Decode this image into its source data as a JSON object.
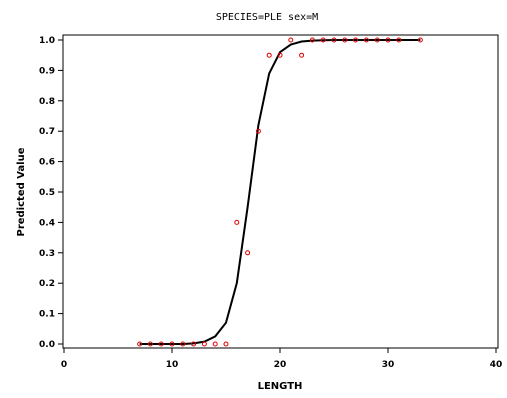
{
  "chart_data": {
    "type": "scatter",
    "title": "SPECIES=PLE sex=M",
    "xlabel": "LENGTH",
    "ylabel": "Predicted Value",
    "xlim": [
      0,
      40
    ],
    "ylim": [
      0,
      1
    ],
    "x_ticks": [
      0,
      10,
      20,
      30,
      40
    ],
    "y_ticks": [
      "0.0",
      "0.1",
      "0.2",
      "0.3",
      "0.4",
      "0.5",
      "0.6",
      "0.7",
      "0.8",
      "0.9",
      "1.0"
    ],
    "grid": false,
    "observed": {
      "color": "#e00000",
      "marker": "circle",
      "points": [
        [
          7,
          0.0
        ],
        [
          8,
          0.0
        ],
        [
          9,
          0.0
        ],
        [
          10,
          0.0
        ],
        [
          11,
          0.0
        ],
        [
          12,
          0.0
        ],
        [
          13,
          0.0
        ],
        [
          14,
          0.0
        ],
        [
          15,
          0.0
        ],
        [
          16,
          0.4
        ],
        [
          17,
          0.3
        ],
        [
          18,
          0.7
        ],
        [
          19,
          0.95
        ],
        [
          20,
          0.95
        ],
        [
          21,
          1.0
        ],
        [
          22,
          0.95
        ],
        [
          23,
          1.0
        ],
        [
          24,
          1.0
        ],
        [
          25,
          1.0
        ],
        [
          26,
          1.0
        ],
        [
          27,
          1.0
        ],
        [
          28,
          1.0
        ],
        [
          29,
          1.0
        ],
        [
          30,
          1.0
        ],
        [
          31,
          1.0
        ],
        [
          33,
          1.0
        ]
      ]
    },
    "fitted": {
      "color": "#000000",
      "points": [
        [
          7,
          0.0
        ],
        [
          8,
          0.0
        ],
        [
          9,
          0.0
        ],
        [
          10,
          0.0
        ],
        [
          11,
          0.0
        ],
        [
          12,
          0.002
        ],
        [
          13,
          0.008
        ],
        [
          14,
          0.025
        ],
        [
          15,
          0.07
        ],
        [
          16,
          0.2
        ],
        [
          17,
          0.45
        ],
        [
          18,
          0.72
        ],
        [
          19,
          0.89
        ],
        [
          20,
          0.96
        ],
        [
          21,
          0.985
        ],
        [
          22,
          0.995
        ],
        [
          23,
          0.998
        ],
        [
          24,
          0.999
        ],
        [
          25,
          1.0
        ],
        [
          26,
          1.0
        ],
        [
          27,
          1.0
        ],
        [
          28,
          1.0
        ],
        [
          29,
          1.0
        ],
        [
          30,
          1.0
        ],
        [
          31,
          1.0
        ],
        [
          33,
          1.0
        ]
      ]
    }
  }
}
